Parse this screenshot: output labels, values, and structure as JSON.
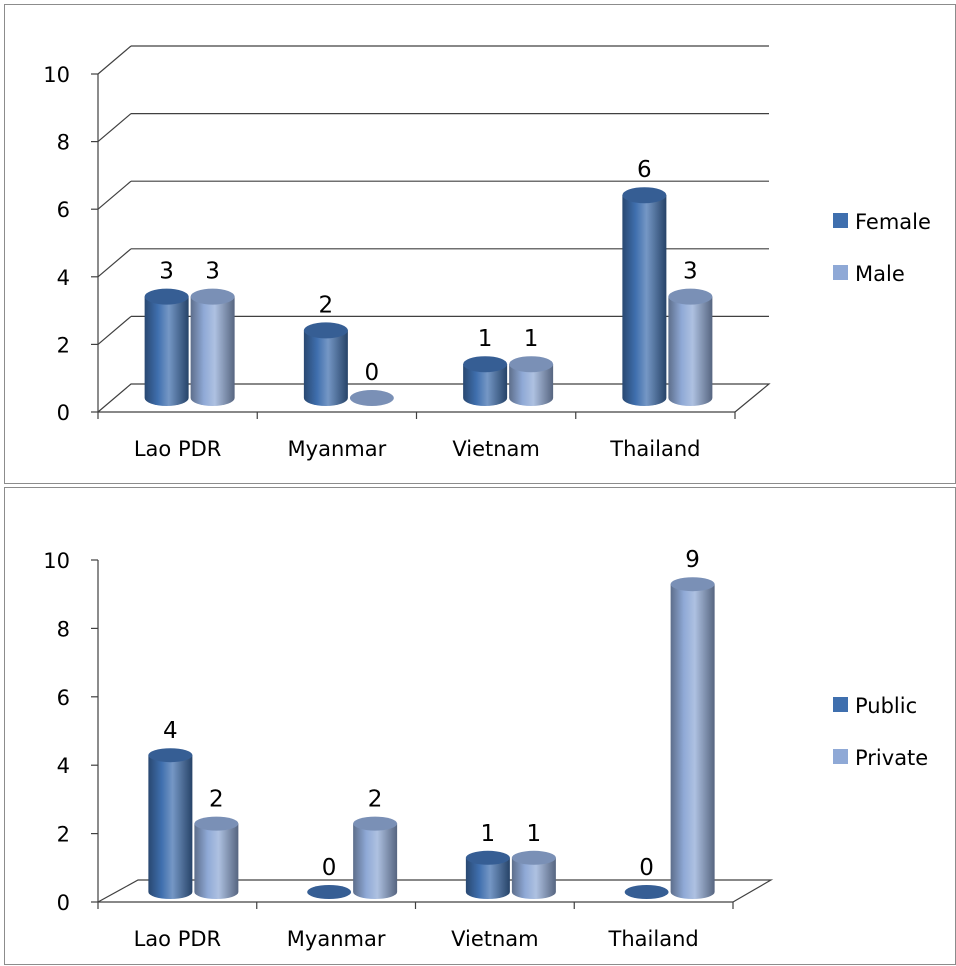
{
  "chart_data": [
    {
      "type": "bar",
      "categories": [
        "Lao PDR",
        "Myanmar",
        "Vietnam",
        "Thailand"
      ],
      "series": [
        {
          "name": "Female",
          "values": [
            3,
            2,
            1,
            6
          ],
          "color": "#3F6FAE"
        },
        {
          "name": "Male",
          "values": [
            3,
            0,
            1,
            3
          ],
          "color": "#8FA9D6"
        }
      ],
      "yticks": [
        "0",
        "2",
        "4",
        "6",
        "8",
        "10"
      ],
      "ylim": [
        0,
        10
      ],
      "grid": true,
      "legend_position": "right",
      "style": "3d-cylinder",
      "data_labels": true
    },
    {
      "type": "bar",
      "categories": [
        "Lao PDR",
        "Myanmar",
        "Vietnam",
        "Thailand"
      ],
      "series": [
        {
          "name": "Public",
          "values": [
            4,
            0,
            1,
            0
          ],
          "color": "#3F6FAE"
        },
        {
          "name": "Private",
          "values": [
            2,
            2,
            1,
            9
          ],
          "color": "#8FA9D6"
        }
      ],
      "yticks": [
        "0",
        "2",
        "4",
        "6",
        "8",
        "10"
      ],
      "ylim": [
        0,
        10
      ],
      "grid": false,
      "legend_position": "right",
      "style": "3d-cylinder",
      "data_labels": true
    }
  ]
}
